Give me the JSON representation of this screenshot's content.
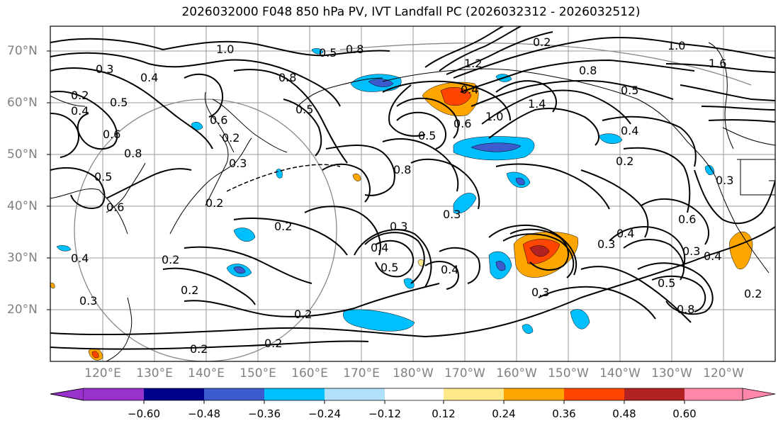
{
  "title": "2026032000 F048 850 hPa PV, IVT Landfall PC (2026032312 - 2026032512)",
  "lat_labels": [
    "70°N",
    "60°N",
    "50°N",
    "40°N",
    "30°N",
    "20°N"
  ],
  "lon_labels": [
    "120°E",
    "130°E",
    "140°E",
    "150°E",
    "160°E",
    "170°E",
    "180°W",
    "170°W",
    "160°W",
    "150°W",
    "140°W",
    "130°W",
    "120°W"
  ],
  "colorbar": {
    "ticks": [
      "−0.60",
      "−0.48",
      "−0.36",
      "−0.24",
      "−0.12",
      "0.12",
      "0.24",
      "0.36",
      "0.48",
      "0.60"
    ],
    "colors": [
      "#9932cc",
      "#00008b",
      "#3b5bce",
      "#00bfff",
      "#b0e0fa",
      "#ffffff",
      "#ffe88a",
      "#ffa500",
      "#ff4500",
      "#b22222",
      "#ff88aa"
    ]
  },
  "contour_labels": [
    "0.3",
    "0.4",
    "0.5",
    "0.6",
    "0.8",
    "1.0",
    "0.2",
    "0.4",
    "0.5",
    "0.6",
    "0.8",
    "0.2",
    "0.3",
    "0.4",
    "0.5",
    "0.6",
    "0.2",
    "0.8",
    "1.0",
    "1.2",
    "1.4",
    "1.6",
    "0.4",
    "0.8",
    "1.0",
    "0.5",
    "0.2",
    "0.5",
    "0.4",
    "0.6",
    "0.3",
    "0.4",
    "0.5",
    "0.3",
    "0.2",
    "0.8",
    "0.5",
    "0.3",
    "0.4",
    "0.2",
    "0.2",
    "0.2",
    "0.2",
    "0.6",
    "0.5",
    "0.3",
    "0.4",
    "0.8",
    "0.2",
    "0.3",
    "0.2",
    "0.3",
    "0.4",
    "0.3",
    "0.2"
  ]
}
